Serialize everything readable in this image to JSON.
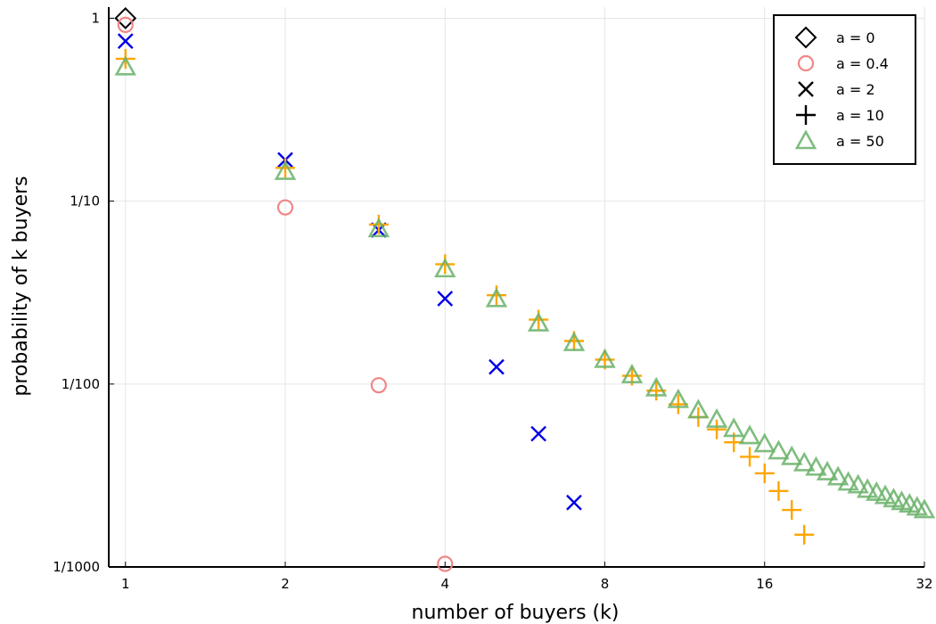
{
  "chart_data": {
    "type": "scatter",
    "xlabel": "number of buyers (k)",
    "ylabel": "probability of k buyers",
    "xscale": "log2",
    "yscale": "log10",
    "xlim": [
      0.93,
      32
    ],
    "ylim": [
      0.001,
      1.15
    ],
    "x_ticks": [
      1,
      2,
      4,
      8,
      16,
      32
    ],
    "x_tick_labels": [
      "1",
      "2",
      "4",
      "8",
      "16",
      "32"
    ],
    "y_ticks": [
      0.001,
      0.01,
      0.1,
      1
    ],
    "y_tick_labels": [
      "1/1000",
      "1/100",
      "1/10",
      "1"
    ],
    "grid": true,
    "legend_position": "top-right",
    "series": [
      {
        "name": "a = 0",
        "marker": "diamond",
        "color": "#000000",
        "x": [
          1
        ],
        "y": [
          1.0
        ]
      },
      {
        "name": "a = 0.4",
        "marker": "circle",
        "color": "#f08080",
        "x": [
          1,
          2,
          3,
          4
        ],
        "y": [
          0.92,
          0.0924,
          0.00985,
          0.00104
        ]
      },
      {
        "name": "a = 2",
        "marker": "x",
        "color": "#0000e6",
        "x": [
          1,
          2,
          3,
          4,
          5,
          6,
          7
        ],
        "y": [
          0.75,
          0.168,
          0.0695,
          0.0293,
          0.0124,
          0.00535,
          0.00225
        ]
      },
      {
        "name": "a = 10",
        "marker": "plus",
        "color": "#ffa500",
        "x": [
          1,
          2,
          3,
          4,
          5,
          6,
          7,
          8,
          9,
          10,
          11,
          12,
          13,
          14,
          15,
          16,
          17,
          18,
          19
        ],
        "y": [
          0.6,
          0.152,
          0.0745,
          0.0452,
          0.0306,
          0.0225,
          0.0172,
          0.0136,
          0.0111,
          0.0092,
          0.00775,
          0.0066,
          0.00565,
          0.0048,
          0.004,
          0.00325,
          0.0026,
          0.00205,
          0.0015
        ]
      },
      {
        "name": "a = 50",
        "marker": "triangle",
        "color": "#6ab26a",
        "x": [
          1,
          2,
          3,
          4,
          5,
          6,
          7,
          8,
          9,
          10,
          11,
          12,
          13,
          14,
          15,
          16,
          17,
          18,
          19,
          20,
          21,
          22,
          23,
          24,
          25,
          26,
          27,
          28,
          29,
          30,
          31,
          32
        ],
        "y": [
          0.54,
          0.145,
          0.0705,
          0.0425,
          0.0292,
          0.0215,
          0.0168,
          0.0136,
          0.0112,
          0.0095,
          0.0082,
          0.0072,
          0.0064,
          0.0057,
          0.0052,
          0.0047,
          0.0043,
          0.004,
          0.0037,
          0.0035,
          0.0033,
          0.0031,
          0.0029,
          0.0028,
          0.00265,
          0.00255,
          0.00245,
          0.00235,
          0.00227,
          0.0022,
          0.00212,
          0.00205
        ]
      }
    ]
  }
}
